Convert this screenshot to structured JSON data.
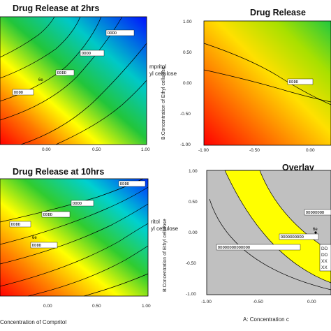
{
  "chart_data": [
    {
      "type": "contour",
      "title": "Drug Release at 2hrs",
      "xticks": [
        "0.00",
        "0.50",
        "1.00"
      ],
      "yticks": [],
      "contour_labels": [
        "DDDD",
        "DDDD",
        "DDDD",
        "DDDD"
      ],
      "side_label_lines": [
        "mpritol",
        "yl cellulose"
      ],
      "point_label": "6e",
      "xlabel": "",
      "ylabel": "",
      "colormap": "jet",
      "high_corner": "top-right"
    },
    {
      "type": "contour",
      "title": "Drug Release",
      "xticks": [
        "-1.00",
        "-0.50",
        "0.00"
      ],
      "yticks": [
        "1.00",
        "0.50",
        "0.00",
        "-0.50",
        "-1.00"
      ],
      "contour_labels": [
        "DDDD"
      ],
      "ylabel": "B:Concentration of Ethyl cellulose",
      "colormap": "jet",
      "high_corner": "bottom-left"
    },
    {
      "type": "contour",
      "title": "Drug Release at 10hrs",
      "xticks": [
        "0.00",
        "0.50",
        "1.00"
      ],
      "yticks": [],
      "contour_labels": [
        "DDDD",
        "DDDD",
        "DDDD",
        "DDDD",
        "DDDD"
      ],
      "side_label_lines": [
        "ritol",
        "yl cellulose"
      ],
      "point_label": "6e",
      "xlabel": "Concentration of Compritol",
      "colormap": "jet",
      "high_corner": "top-right"
    },
    {
      "type": "overlay",
      "title": "Overlay",
      "xticks": [
        "-1.00",
        "-0.50",
        "0.00"
      ],
      "yticks": [
        "1.00",
        "0.50",
        "0.00",
        "-0.50",
        "-1.00"
      ],
      "contour_labels": [
        "DDDDDDDDDDDDDD",
        "DDDDDDDDDD",
        "DDDDDDDD"
      ],
      "point_label": "6e",
      "legend_entries": [
        "DD",
        "DD",
        "XX",
        "XX"
      ],
      "xlabel": "A: Concentration c",
      "ylabel": "B:Concentration of Ethyl cellulose",
      "colors": {
        "region": "#ffff00",
        "outside": "#c0c0c0"
      }
    }
  ]
}
